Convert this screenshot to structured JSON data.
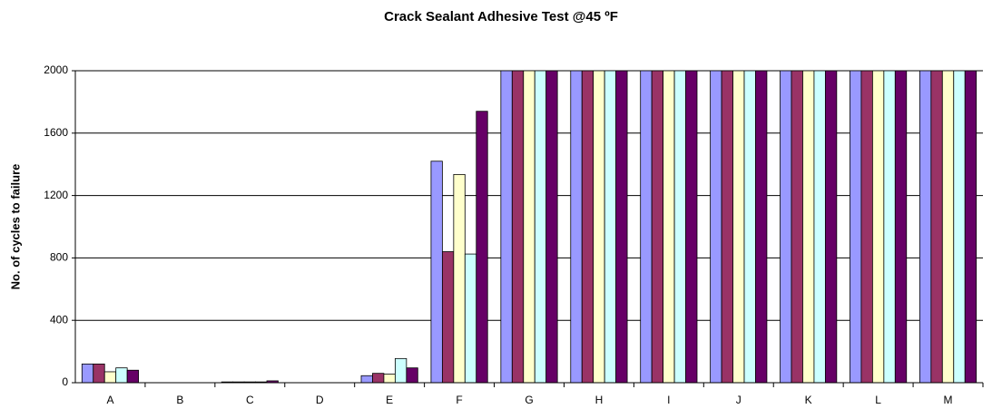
{
  "chart_data": {
    "type": "bar",
    "title": "Crack Sealant Adhesive Test @45 ºF",
    "ylabel": "No. of cycles to failure",
    "categories": [
      "A",
      "B",
      "C",
      "D",
      "E",
      "F",
      "G",
      "H",
      "I",
      "J",
      "K",
      "L",
      "M"
    ],
    "series": [
      {
        "color": "#9999ff",
        "values": [
          120,
          0,
          5,
          0,
          45,
          1420,
          2000,
          2000,
          2000,
          2000,
          2000,
          2000,
          2000
        ]
      },
      {
        "color": "#993366",
        "values": [
          120,
          0,
          5,
          0,
          60,
          840,
          2000,
          2000,
          2000,
          2000,
          2000,
          2000,
          2000
        ]
      },
      {
        "color": "#ffffcc",
        "values": [
          70,
          0,
          5,
          0,
          55,
          1335,
          2000,
          2000,
          2000,
          2000,
          2000,
          2000,
          2000
        ]
      },
      {
        "color": "#ccffff",
        "values": [
          95,
          0,
          5,
          0,
          155,
          825,
          2000,
          2000,
          2000,
          2000,
          2000,
          2000,
          2000
        ]
      },
      {
        "color": "#660066",
        "values": [
          80,
          0,
          12,
          0,
          95,
          1740,
          2000,
          2000,
          2000,
          2000,
          2000,
          2000,
          2000
        ]
      }
    ],
    "ylim": [
      0,
      2000
    ],
    "yticks": [
      0,
      400,
      800,
      1200,
      1600,
      2000
    ],
    "grid": true
  }
}
